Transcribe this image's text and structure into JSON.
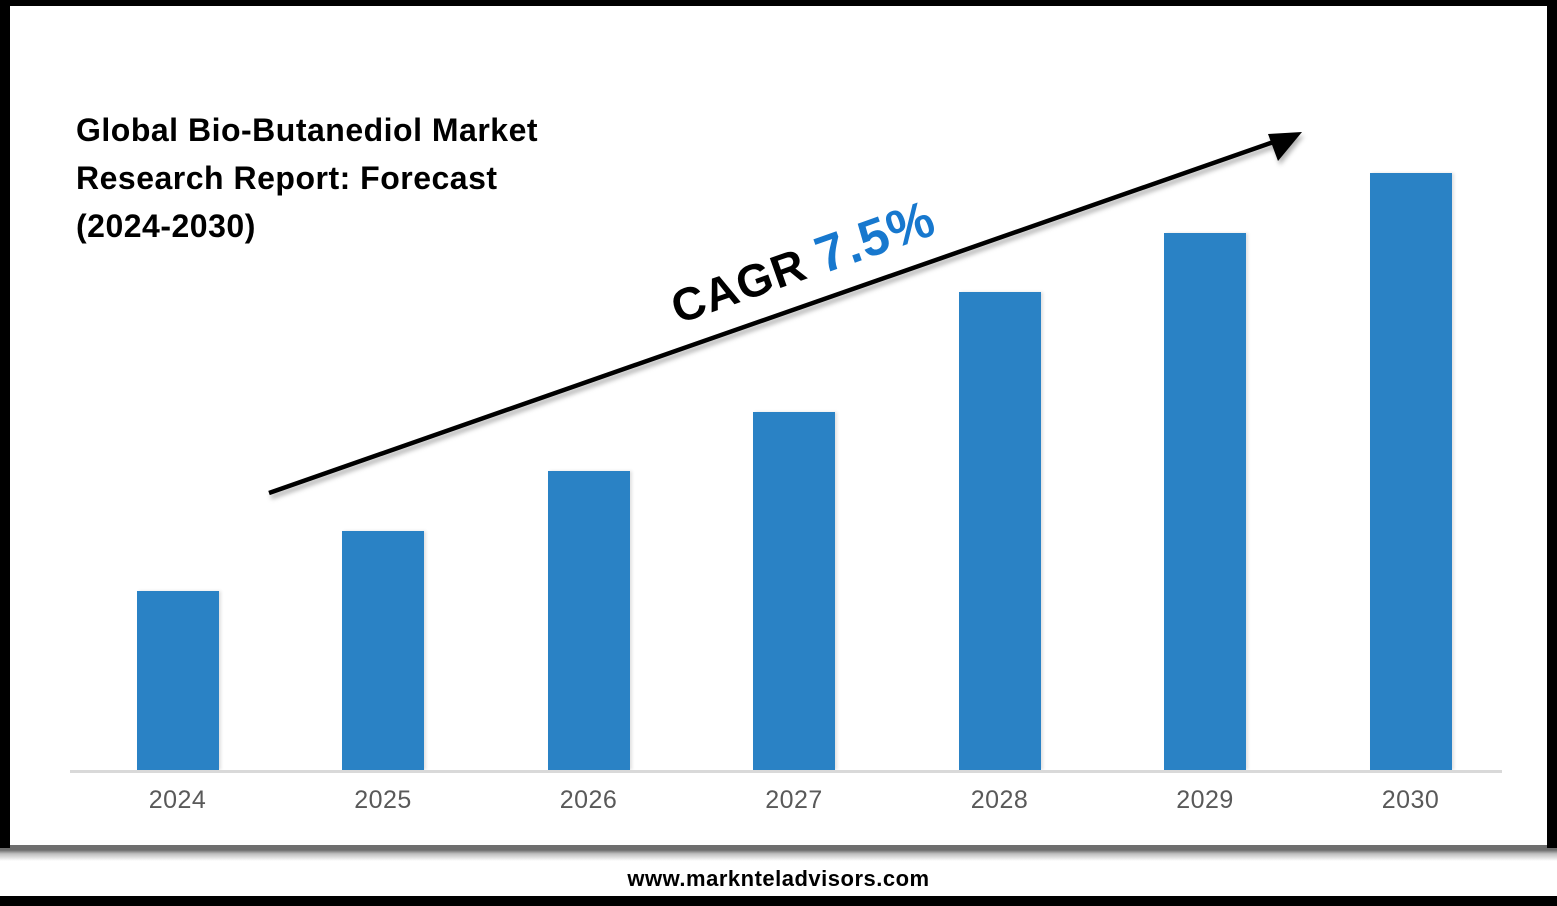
{
  "title": {
    "lines": [
      "Global Bio-Butanediol Market",
      "Research Report: Forecast",
      "(2024-2030)"
    ]
  },
  "cagr": {
    "label": "CAGR",
    "value": "7.5%"
  },
  "footer": {
    "website": "www.marknteladvisors.com"
  },
  "colors": {
    "bar": "#2a82c5",
    "cagr_value": "#1778ce",
    "arrow": "#000000",
    "axis_label": "#595959",
    "axis_line": "#d9d9d9",
    "frame_border": "#000000"
  },
  "chart_data": {
    "type": "bar",
    "title": "Global Bio-Butanediol Market Research Report: Forecast (2024-2030)",
    "categories": [
      "2024",
      "2025",
      "2026",
      "2027",
      "2028",
      "2029",
      "2030"
    ],
    "values": [
      30,
      40,
      50,
      60,
      80,
      90,
      100
    ],
    "xlabel": "",
    "ylabel": "",
    "ylim": [
      0,
      100
    ],
    "value_scale": "relative bar height, percent of tallest bar (no y-axis shown)",
    "grid": false,
    "legend": false,
    "annotation": "CAGR 7.5%",
    "trend_arrow": "upward diagonal from lower-left to upper-right"
  }
}
